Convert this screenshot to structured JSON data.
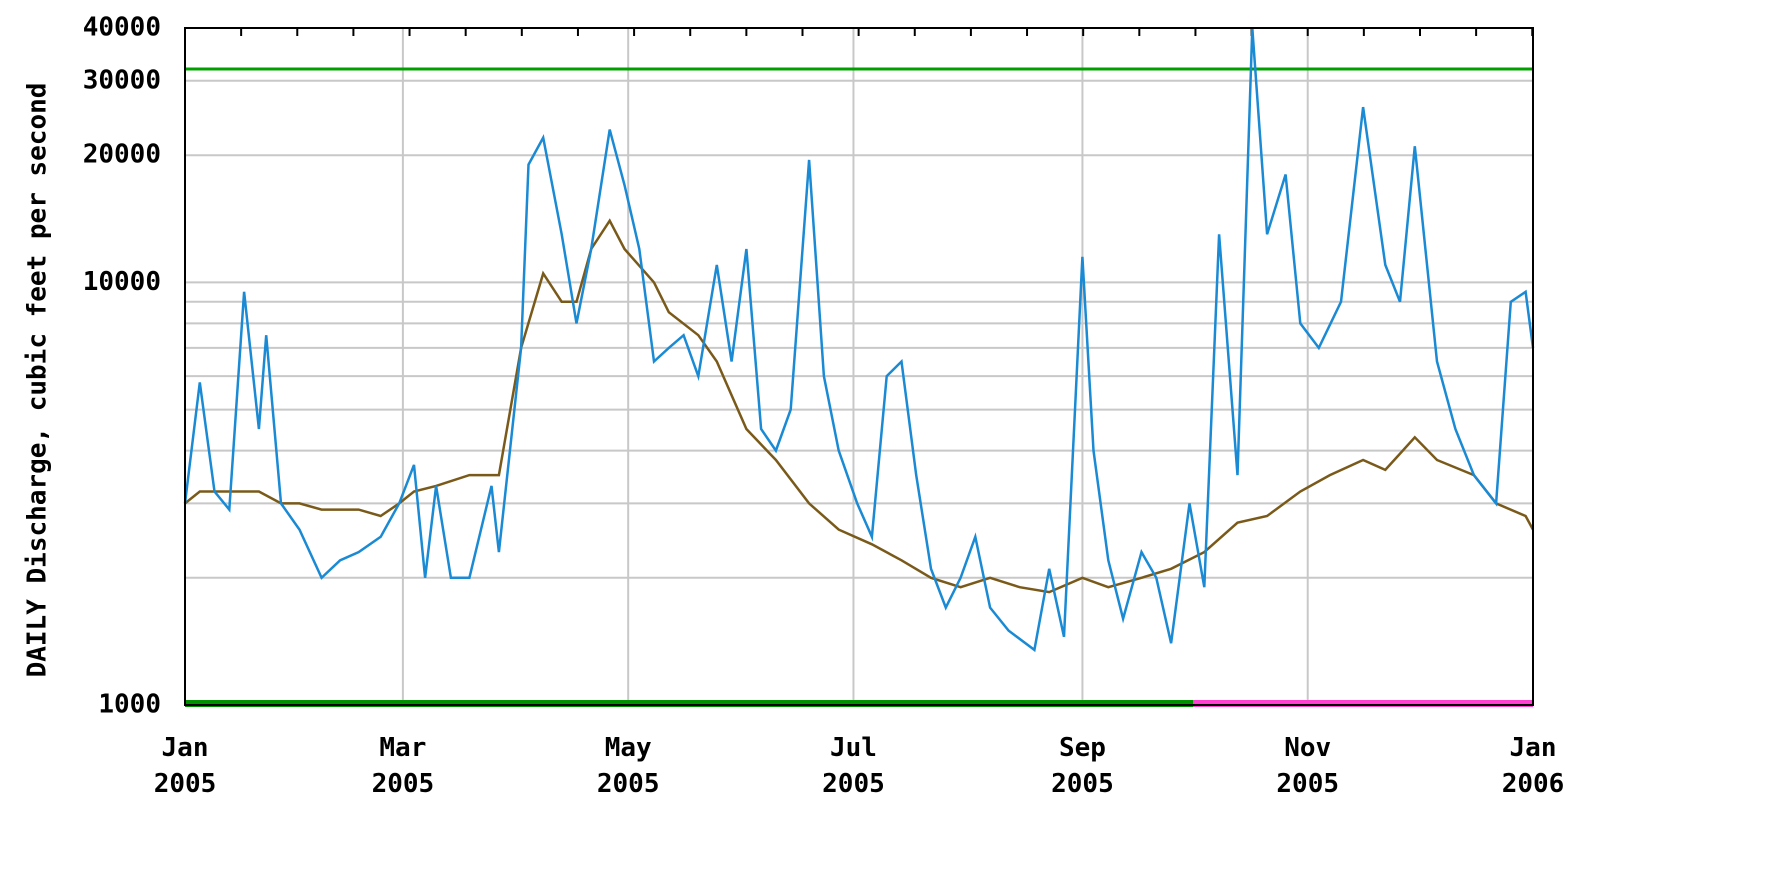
{
  "chart_data": {
    "type": "line",
    "y_label": "DAILY Discharge, cubic feet per second",
    "log_y": true,
    "grid": true,
    "xlim": [
      0,
      365
    ],
    "xticks": [
      {
        "value": 0,
        "label": "Jan\n2005"
      },
      {
        "value": 59,
        "label": "Mar\n2005"
      },
      {
        "value": 120,
        "label": "May\n2005"
      },
      {
        "value": 181,
        "label": "Jul\n2005"
      },
      {
        "value": 243,
        "label": "Sep\n2005"
      },
      {
        "value": 304,
        "label": "Nov\n2005"
      },
      {
        "value": 365,
        "label": "Jan\n2006"
      }
    ],
    "ylim": [
      1000,
      40000
    ],
    "yticks": [
      1000,
      10000,
      20000,
      30000,
      40000
    ],
    "minor_yticks": [
      2000,
      3000,
      4000,
      5000,
      6000,
      7000,
      8000,
      9000
    ],
    "reference_lines": [
      {
        "value": 32000,
        "color": "#00a000"
      }
    ],
    "status_bars": [
      {
        "from": 0,
        "to": 273,
        "color": "#009000"
      },
      {
        "from": 273,
        "to": 365,
        "color": "#ff40d0"
      }
    ],
    "series": [
      {
        "color": "#1a8ad4",
        "x": [
          0,
          4,
          8,
          12,
          16,
          20,
          22,
          26,
          31,
          37,
          42,
          47,
          53,
          58,
          62,
          65,
          68,
          72,
          77,
          83,
          85,
          91,
          93,
          97,
          102,
          106,
          110,
          115,
          119,
          123,
          127,
          131,
          135,
          139,
          144,
          148,
          152,
          156,
          160,
          164,
          169,
          173,
          177,
          182,
          186,
          190,
          194,
          198,
          202,
          206,
          210,
          214,
          218,
          223,
          230,
          234,
          238,
          243,
          246,
          250,
          254,
          259,
          263,
          267,
          272,
          276,
          280,
          285,
          289,
          293,
          298,
          302,
          307,
          313,
          319,
          325,
          329,
          333,
          339,
          344,
          349,
          355,
          359,
          363,
          365
        ],
        "values": [
          3000,
          5800,
          3200,
          2900,
          9500,
          4500,
          7500,
          3000,
          2600,
          2000,
          2200,
          2300,
          2500,
          3000,
          3700,
          2000,
          3300,
          2000,
          2000,
          3300,
          2300,
          7000,
          19000,
          22000,
          13000,
          8000,
          12000,
          23000,
          17000,
          12000,
          6500,
          7000,
          7500,
          6000,
          11000,
          6500,
          12000,
          4500,
          4000,
          5000,
          19500,
          6000,
          4000,
          3000,
          2500,
          6000,
          6500,
          3500,
          2100,
          1700,
          2000,
          2500,
          1700,
          1500,
          1350,
          2100,
          1450,
          11500,
          4000,
          2200,
          1600,
          2300,
          2000,
          1400,
          3000,
          1900,
          13000,
          3500,
          40000,
          13000,
          18000,
          8000,
          7000,
          9000,
          26000,
          11000,
          9000,
          21000,
          6500,
          4500,
          3500,
          3000,
          9000,
          9500,
          7000
        ]
      },
      {
        "color": "#7a5a1a",
        "x": [
          0,
          4,
          12,
          20,
          26,
          31,
          37,
          47,
          53,
          58,
          62,
          68,
          77,
          85,
          91,
          97,
          102,
          106,
          110,
          115,
          119,
          127,
          131,
          139,
          144,
          152,
          160,
          169,
          177,
          186,
          194,
          202,
          210,
          218,
          226,
          234,
          243,
          250,
          259,
          267,
          276,
          285,
          293,
          302,
          310,
          319,
          325,
          333,
          339,
          349,
          355,
          363,
          365
        ],
        "values": [
          3000,
          3200,
          3200,
          3200,
          3000,
          3000,
          2900,
          2900,
          2800,
          3000,
          3200,
          3300,
          3500,
          3500,
          7000,
          10500,
          9000,
          9000,
          12000,
          14000,
          12000,
          10000,
          8500,
          7500,
          6500,
          4500,
          3800,
          3000,
          2600,
          2400,
          2200,
          2000,
          1900,
          2000,
          1900,
          1850,
          2000,
          1900,
          2000,
          2100,
          2300,
          2700,
          2800,
          3200,
          3500,
          3800,
          3600,
          4300,
          3800,
          3500,
          3000,
          2800,
          2600
        ]
      }
    ]
  }
}
